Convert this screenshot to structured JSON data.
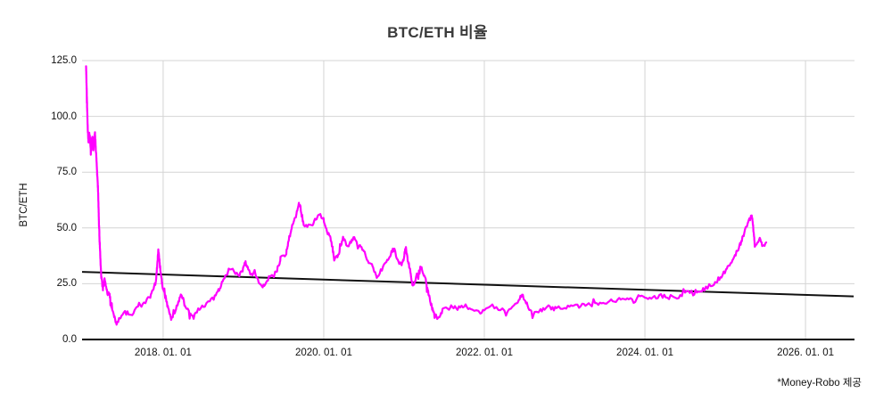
{
  "chart": {
    "title": "BTC/ETH 비율",
    "y_axis_title": "BTC/ETH",
    "source_note": "*Money-Robo 제공"
  },
  "chart_data": {
    "type": "line",
    "title": "BTC/ETH 비율",
    "xlabel": "",
    "ylabel": "BTC/ETH",
    "legend": false,
    "grid": true,
    "ylim": [
      0,
      125
    ],
    "x_range_years": [
      2016.99,
      2026.61
    ],
    "colors": {
      "series": "#ff00ff",
      "trend": "#111111",
      "grid": "#d4d4d4",
      "axis": "#000000",
      "title": "#3a3a3a",
      "ticks": "#111111"
    },
    "y_ticks": [
      {
        "value": 0,
        "label": "0.0"
      },
      {
        "value": 25,
        "label": "25.0"
      },
      {
        "value": 50,
        "label": "50.0"
      },
      {
        "value": 75,
        "label": "75.0"
      },
      {
        "value": 100,
        "label": "100.0"
      },
      {
        "value": 125,
        "label": "125.0"
      }
    ],
    "x_ticks": [
      {
        "year": 2018,
        "label": "2018. 01. 01"
      },
      {
        "year": 2020,
        "label": "2020. 01. 01"
      },
      {
        "year": 2022,
        "label": "2022. 01. 01"
      },
      {
        "year": 2024,
        "label": "2024. 01. 01"
      },
      {
        "year": 2026,
        "label": "2026. 01. 01"
      }
    ],
    "trendline": {
      "name": "linear trend",
      "start": {
        "year": 2016.99,
        "value": 30.3
      },
      "end": {
        "year": 2026.6,
        "value": 19.3
      }
    },
    "series": [
      {
        "name": "BTC/ETH ratio",
        "color": "#ff00ff",
        "points": [
          [
            2017.04,
            122
          ],
          [
            2017.05,
            108
          ],
          [
            2017.06,
            95
          ],
          [
            2017.07,
            88
          ],
          [
            2017.08,
            92
          ],
          [
            2017.09,
            90
          ],
          [
            2017.1,
            84
          ],
          [
            2017.11,
            88
          ],
          [
            2017.12,
            91
          ],
          [
            2017.13,
            85
          ],
          [
            2017.14,
            89
          ],
          [
            2017.15,
            93
          ],
          [
            2017.16,
            86
          ],
          [
            2017.17,
            80
          ],
          [
            2017.19,
            66
          ],
          [
            2017.2,
            52
          ],
          [
            2017.21,
            44
          ],
          [
            2017.22,
            34
          ],
          [
            2017.23,
            28
          ],
          [
            2017.25,
            22
          ],
          [
            2017.26,
            25
          ],
          [
            2017.27,
            27
          ],
          [
            2017.29,
            23
          ],
          [
            2017.31,
            20
          ],
          [
            2017.33,
            21
          ],
          [
            2017.36,
            14
          ],
          [
            2017.39,
            10.5
          ],
          [
            2017.42,
            7
          ],
          [
            2017.45,
            9
          ],
          [
            2017.48,
            11
          ],
          [
            2017.51,
            12
          ],
          [
            2017.54,
            13
          ],
          [
            2017.57,
            11.5
          ],
          [
            2017.6,
            11
          ],
          [
            2017.63,
            12.5
          ],
          [
            2017.66,
            14
          ],
          [
            2017.7,
            16
          ],
          [
            2017.73,
            15
          ],
          [
            2017.76,
            16.5
          ],
          [
            2017.8,
            17.5
          ],
          [
            2017.84,
            19
          ],
          [
            2017.88,
            23
          ],
          [
            2017.91,
            26
          ],
          [
            2017.94,
            40
          ],
          [
            2017.96,
            33
          ],
          [
            2017.99,
            24
          ],
          [
            2018.01,
            21.5
          ],
          [
            2018.04,
            17
          ],
          [
            2018.07,
            13
          ],
          [
            2018.1,
            9
          ],
          [
            2018.13,
            11
          ],
          [
            2018.16,
            14
          ],
          [
            2018.19,
            17
          ],
          [
            2018.22,
            20
          ],
          [
            2018.25,
            18
          ],
          [
            2018.28,
            15
          ],
          [
            2018.32,
            13
          ],
          [
            2018.35,
            11
          ],
          [
            2018.38,
            10
          ],
          [
            2018.42,
            12
          ],
          [
            2018.47,
            14
          ],
          [
            2018.52,
            15.5
          ],
          [
            2018.58,
            17
          ],
          [
            2018.63,
            18.5
          ],
          [
            2018.68,
            21
          ],
          [
            2018.74,
            26
          ],
          [
            2018.8,
            29.5
          ],
          [
            2018.85,
            31.5
          ],
          [
            2018.9,
            30
          ],
          [
            2018.95,
            28.5
          ],
          [
            2018.99,
            31
          ],
          [
            2019.02,
            35.5
          ],
          [
            2019.06,
            31
          ],
          [
            2019.1,
            29
          ],
          [
            2019.14,
            30.5
          ],
          [
            2019.19,
            26
          ],
          [
            2019.24,
            23.5
          ],
          [
            2019.28,
            26
          ],
          [
            2019.33,
            28.5
          ],
          [
            2019.38,
            29
          ],
          [
            2019.41,
            30.5
          ],
          [
            2019.45,
            34
          ],
          [
            2019.47,
            38
          ],
          [
            2019.5,
            37
          ],
          [
            2019.53,
            38
          ],
          [
            2019.56,
            44
          ],
          [
            2019.6,
            50
          ],
          [
            2019.63,
            53
          ],
          [
            2019.66,
            56
          ],
          [
            2019.69,
            60.5
          ],
          [
            2019.72,
            56
          ],
          [
            2019.75,
            52
          ],
          [
            2019.78,
            50.5
          ],
          [
            2019.81,
            52
          ],
          [
            2019.86,
            51.5
          ],
          [
            2019.9,
            54
          ],
          [
            2019.94,
            56.5
          ],
          [
            2019.99,
            54.5
          ],
          [
            2020.04,
            49
          ],
          [
            2020.08,
            46.5
          ],
          [
            2020.11,
            41
          ],
          [
            2020.13,
            35.5
          ],
          [
            2020.16,
            37
          ],
          [
            2020.19,
            39
          ],
          [
            2020.24,
            45.5
          ],
          [
            2020.27,
            43.5
          ],
          [
            2020.3,
            41.5
          ],
          [
            2020.34,
            44
          ],
          [
            2020.38,
            46.5
          ],
          [
            2020.41,
            44
          ],
          [
            2020.44,
            42.5
          ],
          [
            2020.48,
            40
          ],
          [
            2020.52,
            37.5
          ],
          [
            2020.56,
            35
          ],
          [
            2020.6,
            33
          ],
          [
            2020.63,
            30
          ],
          [
            2020.66,
            28
          ],
          [
            2020.71,
            31
          ],
          [
            2020.74,
            32.5
          ],
          [
            2020.78,
            34.5
          ],
          [
            2020.82,
            37
          ],
          [
            2020.86,
            40.5
          ],
          [
            2020.91,
            36.5
          ],
          [
            2020.94,
            34.5
          ],
          [
            2020.97,
            33
          ],
          [
            2021.0,
            37
          ],
          [
            2021.02,
            41.5
          ],
          [
            2021.05,
            35
          ],
          [
            2021.08,
            30.5
          ],
          [
            2021.11,
            23.5
          ],
          [
            2021.14,
            26.5
          ],
          [
            2021.17,
            29
          ],
          [
            2021.21,
            33
          ],
          [
            2021.24,
            30
          ],
          [
            2021.27,
            26.5
          ],
          [
            2021.3,
            21.5
          ],
          [
            2021.32,
            18.5
          ],
          [
            2021.35,
            14
          ],
          [
            2021.38,
            10.5
          ],
          [
            2021.43,
            9.2
          ],
          [
            2021.46,
            11.5
          ],
          [
            2021.49,
            13.7
          ],
          [
            2021.52,
            15
          ],
          [
            2021.56,
            14
          ],
          [
            2021.6,
            15.5
          ],
          [
            2021.65,
            13.5
          ],
          [
            2021.7,
            14.5
          ],
          [
            2021.75,
            15.5
          ],
          [
            2021.8,
            14
          ],
          [
            2021.85,
            13
          ],
          [
            2021.9,
            12.5
          ],
          [
            2021.95,
            12
          ],
          [
            2022.0,
            13.5
          ],
          [
            2022.05,
            14
          ],
          [
            2022.1,
            14.5
          ],
          [
            2022.15,
            14
          ],
          [
            2022.2,
            13.5
          ],
          [
            2022.25,
            13
          ],
          [
            2022.31,
            13.5
          ],
          [
            2022.37,
            15
          ],
          [
            2022.43,
            17.5
          ],
          [
            2022.47,
            20
          ],
          [
            2022.52,
            16.5
          ],
          [
            2022.56,
            13.5
          ],
          [
            2022.6,
            12
          ],
          [
            2022.65,
            12.5
          ],
          [
            2022.7,
            13
          ],
          [
            2022.75,
            14
          ],
          [
            2022.8,
            14.5
          ],
          [
            2022.85,
            13.5
          ],
          [
            2022.9,
            14.5
          ],
          [
            2022.95,
            14
          ],
          [
            2023.0,
            14.5
          ],
          [
            2023.06,
            15
          ],
          [
            2023.12,
            15.5
          ],
          [
            2023.18,
            15
          ],
          [
            2023.24,
            15.5
          ],
          [
            2023.3,
            16
          ],
          [
            2023.36,
            15.5
          ],
          [
            2023.42,
            16
          ],
          [
            2023.48,
            16
          ],
          [
            2023.54,
            16.5
          ],
          [
            2023.6,
            17.5
          ],
          [
            2023.66,
            18
          ],
          [
            2023.72,
            17.5
          ],
          [
            2023.78,
            18
          ],
          [
            2023.84,
            18.5
          ],
          [
            2023.9,
            19
          ],
          [
            2023.96,
            19.5
          ],
          [
            2024.02,
            18.5
          ],
          [
            2024.08,
            18
          ],
          [
            2024.14,
            19
          ],
          [
            2024.2,
            19.5
          ],
          [
            2024.26,
            19.5
          ],
          [
            2024.32,
            18.5
          ],
          [
            2024.38,
            19
          ],
          [
            2024.44,
            19.5
          ],
          [
            2024.5,
            20.5
          ],
          [
            2024.56,
            21.5
          ],
          [
            2024.6,
            20.5
          ],
          [
            2024.63,
            21.5
          ],
          [
            2024.68,
            20.5
          ],
          [
            2024.74,
            23
          ],
          [
            2024.8,
            24
          ],
          [
            2024.86,
            25
          ],
          [
            2024.9,
            26.5
          ],
          [
            2024.94,
            28
          ],
          [
            2025.01,
            31
          ],
          [
            2025.04,
            33
          ],
          [
            2025.08,
            35
          ],
          [
            2025.13,
            38.5
          ],
          [
            2025.17,
            41
          ],
          [
            2025.23,
            47
          ],
          [
            2025.27,
            51
          ],
          [
            2025.3,
            53.5
          ],
          [
            2025.33,
            56
          ],
          [
            2025.35,
            50
          ],
          [
            2025.37,
            41
          ],
          [
            2025.4,
            43
          ],
          [
            2025.43,
            45.5
          ],
          [
            2025.46,
            42.5
          ],
          [
            2025.48,
            41.5
          ],
          [
            2025.51,
            43.5
          ]
        ]
      }
    ]
  }
}
